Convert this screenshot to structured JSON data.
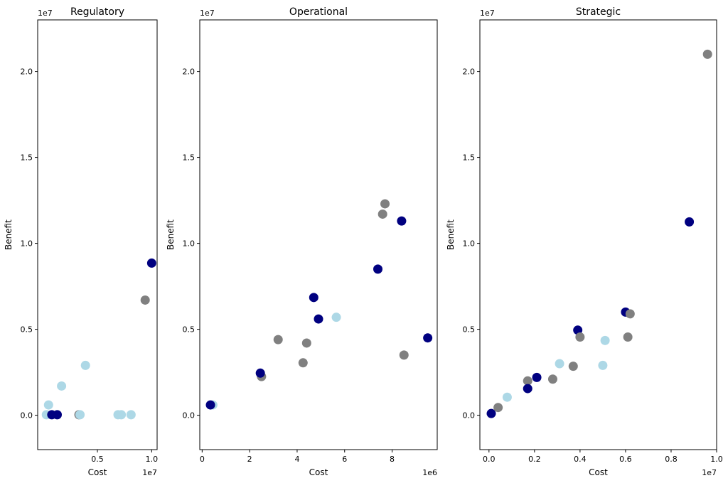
{
  "chart_data": [
    {
      "type": "scatter",
      "title": "Regulatory",
      "xlabel": "Cost",
      "ylabel": "Benefit",
      "x_offset_label": "1e7",
      "y_offset_label": "1e7",
      "xlim": [
        -0.05,
        1.05
      ],
      "ylim": [
        -0.2,
        2.3
      ],
      "x_ticks": [
        {
          "v": 0.5,
          "label": "0.5"
        },
        {
          "v": 1.0,
          "label": "1.0"
        }
      ],
      "y_ticks": [
        {
          "v": 0.0,
          "label": "0.0"
        },
        {
          "v": 0.5,
          "label": "0.5"
        },
        {
          "v": 1.0,
          "label": "1.0"
        },
        {
          "v": 1.5,
          "label": "1.5"
        },
        {
          "v": 2.0,
          "label": "2.0"
        }
      ],
      "points": [
        {
          "x": 0.03,
          "y": 0.003,
          "color": "lightblue"
        },
        {
          "x": 0.05,
          "y": 0.06,
          "color": "lightblue"
        },
        {
          "x": 0.08,
          "y": 0.003,
          "color": "navy"
        },
        {
          "x": 0.13,
          "y": 0.003,
          "color": "navy"
        },
        {
          "x": 0.17,
          "y": 0.17,
          "color": "lightblue"
        },
        {
          "x": 0.33,
          "y": 0.003,
          "color": "gray"
        },
        {
          "x": 0.34,
          "y": 0.003,
          "color": "lightblue"
        },
        {
          "x": 0.39,
          "y": 0.29,
          "color": "lightblue"
        },
        {
          "x": 0.69,
          "y": 0.003,
          "color": "lightblue"
        },
        {
          "x": 0.72,
          "y": 0.003,
          "color": "lightblue"
        },
        {
          "x": 0.81,
          "y": 0.003,
          "color": "lightblue"
        },
        {
          "x": 0.94,
          "y": 0.67,
          "color": "gray"
        },
        {
          "x": 1.0,
          "y": 0.885,
          "color": "navy"
        }
      ]
    },
    {
      "type": "scatter",
      "title": "Operational",
      "xlabel": "Cost",
      "ylabel": "Benefit",
      "x_offset_label": "1e6",
      "y_offset_label": "1e7",
      "xlim": [
        -0.1,
        9.9
      ],
      "ylim": [
        -0.2,
        2.3
      ],
      "x_ticks": [
        {
          "v": 0,
          "label": "0"
        },
        {
          "v": 2,
          "label": "2"
        },
        {
          "v": 4,
          "label": "4"
        },
        {
          "v": 6,
          "label": "6"
        },
        {
          "v": 8,
          "label": "8"
        }
      ],
      "y_ticks": [
        {
          "v": 0.0,
          "label": "0.0"
        },
        {
          "v": 0.5,
          "label": "0.5"
        },
        {
          "v": 1.0,
          "label": "1.0"
        },
        {
          "v": 1.5,
          "label": "1.5"
        },
        {
          "v": 2.0,
          "label": "2.0"
        }
      ],
      "points": [
        {
          "x": 0.45,
          "y": 0.06,
          "color": "lightblue"
        },
        {
          "x": 0.35,
          "y": 0.06,
          "color": "navy"
        },
        {
          "x": 2.5,
          "y": 0.225,
          "color": "gray"
        },
        {
          "x": 2.45,
          "y": 0.245,
          "color": "navy"
        },
        {
          "x": 3.2,
          "y": 0.44,
          "color": "gray"
        },
        {
          "x": 4.25,
          "y": 0.305,
          "color": "gray"
        },
        {
          "x": 4.4,
          "y": 0.42,
          "color": "gray"
        },
        {
          "x": 4.7,
          "y": 0.685,
          "color": "navy"
        },
        {
          "x": 4.9,
          "y": 0.56,
          "color": "navy"
        },
        {
          "x": 5.65,
          "y": 0.57,
          "color": "lightblue"
        },
        {
          "x": 7.4,
          "y": 0.85,
          "color": "navy"
        },
        {
          "x": 7.6,
          "y": 1.17,
          "color": "gray"
        },
        {
          "x": 7.7,
          "y": 1.23,
          "color": "gray"
        },
        {
          "x": 8.4,
          "y": 1.13,
          "color": "navy"
        },
        {
          "x": 8.5,
          "y": 0.35,
          "color": "gray"
        },
        {
          "x": 9.5,
          "y": 0.45,
          "color": "navy"
        }
      ]
    },
    {
      "type": "scatter",
      "title": "Strategic",
      "xlabel": "Cost",
      "ylabel": "Benefit",
      "x_offset_label": "1e7",
      "y_offset_label": "1e7",
      "xlim": [
        -0.04,
        1.0
      ],
      "ylim": [
        -0.2,
        2.3
      ],
      "x_ticks": [
        {
          "v": 0.0,
          "label": "0.0"
        },
        {
          "v": 0.2,
          "label": "0.2"
        },
        {
          "v": 0.4,
          "label": "0.4"
        },
        {
          "v": 0.6,
          "label": "0.6"
        },
        {
          "v": 0.8,
          "label": "0.8"
        },
        {
          "v": 1.0,
          "label": "1.0"
        }
      ],
      "y_ticks": [
        {
          "v": 0.0,
          "label": "0.0"
        },
        {
          "v": 0.5,
          "label": "0.5"
        },
        {
          "v": 1.0,
          "label": "1.0"
        },
        {
          "v": 1.5,
          "label": "1.5"
        },
        {
          "v": 2.0,
          "label": "2.0"
        }
      ],
      "points": [
        {
          "x": 0.01,
          "y": 0.01,
          "color": "navy"
        },
        {
          "x": 0.04,
          "y": 0.045,
          "color": "gray"
        },
        {
          "x": 0.08,
          "y": 0.105,
          "color": "lightblue"
        },
        {
          "x": 0.17,
          "y": 0.2,
          "color": "gray"
        },
        {
          "x": 0.17,
          "y": 0.155,
          "color": "navy"
        },
        {
          "x": 0.21,
          "y": 0.22,
          "color": "navy"
        },
        {
          "x": 0.28,
          "y": 0.21,
          "color": "gray"
        },
        {
          "x": 0.31,
          "y": 0.3,
          "color": "lightblue"
        },
        {
          "x": 0.37,
          "y": 0.285,
          "color": "gray"
        },
        {
          "x": 0.39,
          "y": 0.495,
          "color": "navy"
        },
        {
          "x": 0.4,
          "y": 0.455,
          "color": "gray"
        },
        {
          "x": 0.5,
          "y": 0.29,
          "color": "lightblue"
        },
        {
          "x": 0.51,
          "y": 0.435,
          "color": "lightblue"
        },
        {
          "x": 0.6,
          "y": 0.6,
          "color": "navy"
        },
        {
          "x": 0.61,
          "y": 0.455,
          "color": "gray"
        },
        {
          "x": 0.62,
          "y": 0.59,
          "color": "gray"
        },
        {
          "x": 0.88,
          "y": 1.125,
          "color": "navy"
        },
        {
          "x": 0.96,
          "y": 2.1,
          "color": "gray"
        }
      ]
    }
  ],
  "colors": {
    "navy": "#000080",
    "gray": "#808080",
    "lightblue": "#add8e6"
  }
}
